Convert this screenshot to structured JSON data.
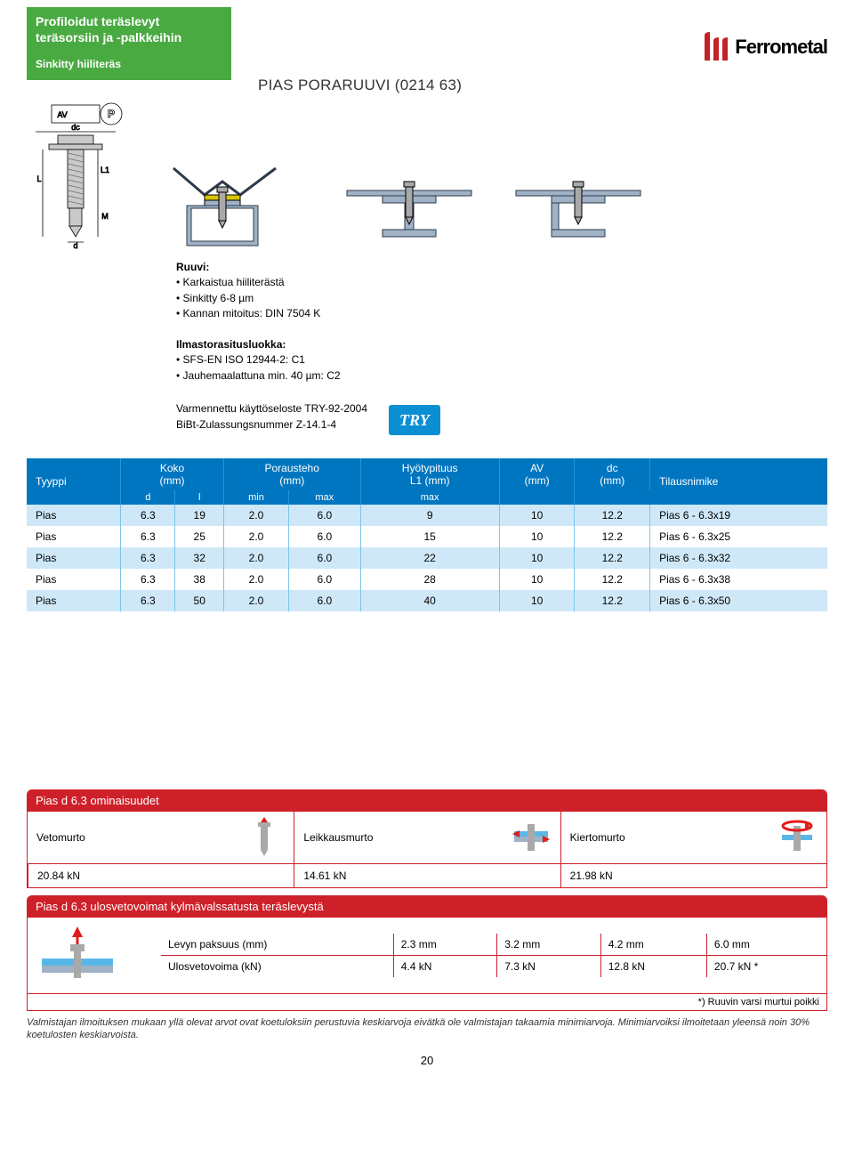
{
  "header": {
    "line1": "Profiloidut teräslevyt",
    "line2": "teräsorsiin ja -palkkeihin",
    "sub": "Sinkitty hiiliteräs"
  },
  "logo": {
    "text": "Ferrometal",
    "icon_color": "#c32127",
    "text_color": "#000000"
  },
  "page_title": "PIAS PORARUUVI  (0214 63)",
  "screw_labels": {
    "AV": "AV",
    "P": "P",
    "dc": "dc",
    "L": "L",
    "L1": "L1",
    "M": "M",
    "d": "d"
  },
  "specs": {
    "ruuvi_heading": "Ruuvi:",
    "ruuvi_items": [
      "Karkaistua hiiliterästä",
      "Sinkitty 6-8 µm",
      "Kannan mitoitus: DIN 7504 K"
    ],
    "ilmasto_heading": "Ilmastorasitusluokka:",
    "ilmasto_items": [
      "SFS-EN ISO 12944-2: C1",
      "Jauhemaalattuna min. 40 µm: C2"
    ],
    "extra": [
      "Varmennettu käyttöseloste TRY-92-2004",
      "BiBt-Zulassungsnummer Z-14.1-4"
    ],
    "try_label": "TRY"
  },
  "table1": {
    "bg": "#0076c0",
    "row_alt_bg": "#cfe8f7",
    "head1": [
      "Tyyppi",
      "Koko\n(mm)",
      "Porausteho\n(mm)",
      "Hyötypituus\nL1 (mm)",
      "AV\n(mm)",
      "dc\n(mm)",
      "Tilausnimike"
    ],
    "head2": [
      "",
      "d",
      "l",
      "min",
      "max",
      "max",
      "",
      "",
      ""
    ],
    "rows": [
      [
        "Pias",
        "6.3",
        "19",
        "2.0",
        "6.0",
        "9",
        "10",
        "12.2",
        "Pias 6 - 6.3x19"
      ],
      [
        "Pias",
        "6.3",
        "25",
        "2.0",
        "6.0",
        "15",
        "10",
        "12.2",
        "Pias 6 - 6.3x25"
      ],
      [
        "Pias",
        "6.3",
        "32",
        "2.0",
        "6.0",
        "22",
        "10",
        "12.2",
        "Pias 6 - 6.3x32"
      ],
      [
        "Pias",
        "6.3",
        "38",
        "2.0",
        "6.0",
        "28",
        "10",
        "12.2",
        "Pias 6 - 6.3x38"
      ],
      [
        "Pias",
        "6.3",
        "50",
        "2.0",
        "6.0",
        "40",
        "10",
        "12.2",
        "Pias 6 - 6.3x50"
      ]
    ]
  },
  "props": {
    "title": "Pias d 6.3 ominaisuudet",
    "header_bg": "#ce2029",
    "cells": [
      {
        "label": "Vetomurto",
        "value": "20.84 kN"
      },
      {
        "label": "Leikkausmurto",
        "value": "14.61 kN"
      },
      {
        "label": "Kiertomurto",
        "value": "21.98 kN"
      }
    ]
  },
  "pull": {
    "title": "Pias d 6.3  ulosvetovoimat  kylmävalssatusta teräslevystä",
    "row_labels": [
      "Levyn paksuus (mm)",
      "Ulosvetovoima (kN)"
    ],
    "cols": [
      "2.3 mm",
      "3.2 mm",
      "4.2 mm",
      "6.0 mm"
    ],
    "vals": [
      "4.4 kN",
      "7.3 kN",
      "12.8 kN",
      "20.7 kN *"
    ],
    "note": "*) Ruuvin varsi murtui poikki"
  },
  "footnote": "Valmistajan ilmoituksen mukaan yllä olevat arvot ovat koetuloksiin perustuvia keskiarvoja eivätkä ole valmistajan takaamia minimiarvoja. Minimiarvoiksi ilmoitetaan yleensä noin 30% koetulosten keskiarvoista.",
  "page_number": "20",
  "diagram_colors": {
    "steel": "#9fb2c6",
    "steel_dark": "#2e3a4a",
    "bolt": "#a9a9a9",
    "bolt_dark": "#6f6f6f",
    "yellow": "#d7c500",
    "red": "#e21b1b",
    "blue": "#59b7e8"
  }
}
